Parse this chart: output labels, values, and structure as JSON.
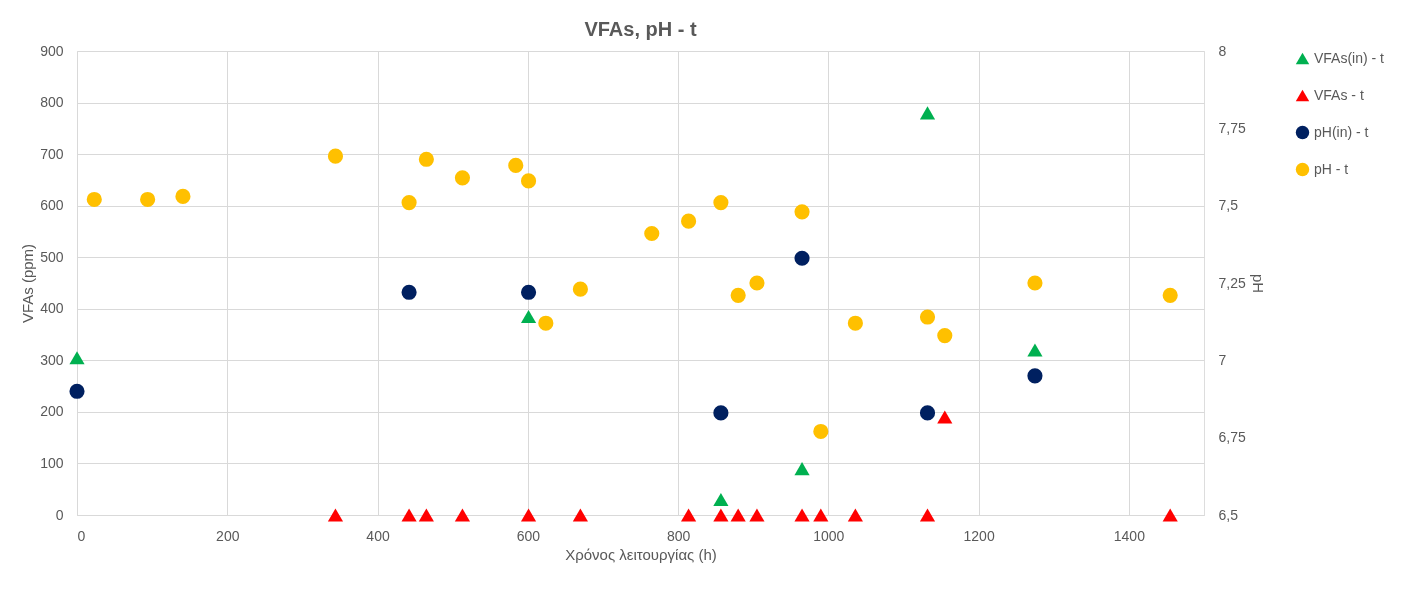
{
  "chart_data": {
    "type": "scatter",
    "title": "VFAs, pH - t",
    "xlabel": "Χρόνος λειτουργίας (h)",
    "ylabel": "VFAs (ppm)",
    "y2label": "pH",
    "xlim": [
      0,
      1500
    ],
    "xticks": [
      0,
      200,
      400,
      600,
      800,
      1000,
      1200,
      1400
    ],
    "ylim": [
      0,
      900
    ],
    "yticks": [
      0,
      100,
      200,
      300,
      400,
      500,
      600,
      700,
      800,
      900
    ],
    "y2lim": [
      6.5,
      8
    ],
    "y2ticks": [
      {
        "value": 6.5,
        "label": "6,5"
      },
      {
        "value": 6.75,
        "label": "6,75"
      },
      {
        "value": 7,
        "label": "7"
      },
      {
        "value": 7.25,
        "label": "7,25"
      },
      {
        "value": 7.5,
        "label": "7,5"
      },
      {
        "value": 7.75,
        "label": "7,75"
      },
      {
        "value": 8,
        "label": "8"
      }
    ],
    "grid": true,
    "legend": "right",
    "series": [
      {
        "name": "VFAs(in) - t",
        "color": "#00b050",
        "marker": "triangle",
        "x": [
          0,
          601,
          857,
          965,
          1132,
          1275
        ],
        "values": [
          305,
          385,
          30,
          90,
          780,
          320
        ]
      },
      {
        "name": "VFAs - t",
        "color": "#ff0000",
        "marker": "triangle",
        "x": [
          344,
          442,
          465,
          513,
          601,
          670,
          814,
          857,
          880,
          905,
          965,
          990,
          1036,
          1132,
          1155,
          1455
        ],
        "values": [
          0,
          0,
          0,
          0,
          0,
          0,
          0,
          0,
          0,
          0,
          0,
          0,
          0,
          0,
          190,
          0
        ]
      },
      {
        "name": "pH(in) - t",
        "color": "#002060",
        "marker": "circle",
        "axis": "y2",
        "x": [
          0,
          442,
          601,
          857,
          965,
          1132,
          1275
        ],
        "values": [
          6.9,
          7.22,
          7.22,
          6.83,
          7.33,
          6.83,
          6.95
        ]
      },
      {
        "name": "pH - t",
        "color": "#ffc000",
        "marker": "circle",
        "axis": "y2",
        "x": [
          23,
          94,
          141,
          344,
          442,
          465,
          513,
          584,
          601,
          624,
          670,
          765,
          814,
          857,
          880,
          905,
          965,
          990,
          1036,
          1132,
          1155,
          1275,
          1455
        ],
        "values": [
          7.52,
          7.52,
          7.53,
          7.66,
          7.51,
          7.65,
          7.59,
          7.63,
          7.58,
          7.12,
          7.23,
          7.41,
          7.45,
          7.51,
          7.21,
          7.25,
          7.48,
          6.77,
          7.12,
          7.14,
          7.08,
          7.25,
          7.21
        ]
      }
    ]
  }
}
